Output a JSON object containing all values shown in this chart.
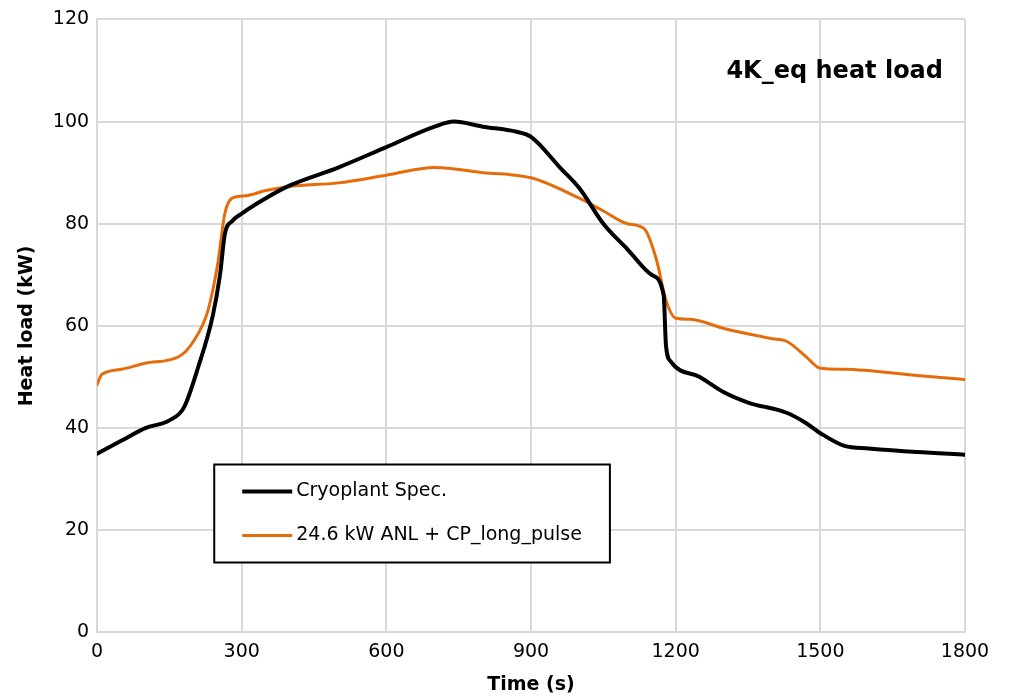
{
  "chart_data": {
    "type": "line",
    "title": "4K_eq heat load",
    "xlabel": "Time (s)",
    "ylabel": "Heat load (kW)",
    "xlim": [
      0,
      1800
    ],
    "xticks": [
      0,
      300,
      600,
      900,
      1200,
      1500,
      1800
    ],
    "ylim": [
      0,
      120
    ],
    "yticks": [
      0,
      20,
      40,
      60,
      80,
      100,
      120
    ],
    "grid": true,
    "legend": "bottom",
    "marker": "none",
    "line_style": "solid",
    "series": [
      {
        "name": "Cryoplant Spec.",
        "color": "#000000",
        "x": [
          0,
          50,
          100,
          150,
          180,
          210,
          240,
          255,
          265,
          280,
          300,
          350,
          400,
          500,
          600,
          700,
          740,
          800,
          870,
          900,
          960,
          1000,
          1050,
          1100,
          1150,
          1175,
          1180,
          1190,
          1250,
          1300,
          1350,
          1430,
          1470,
          1500,
          1550,
          1600,
          1700,
          1800
        ],
        "values": [
          35,
          37.5,
          40,
          41.5,
          44,
          52,
          62,
          70,
          78,
          80.5,
          82,
          85,
          87.5,
          91,
          95,
          99,
          100,
          99,
          98,
          97,
          91,
          87,
          80,
          75,
          70,
          66,
          56,
          53,
          50,
          47,
          45,
          43,
          41,
          39,
          36.5,
          36,
          35.3,
          34.8
        ]
      },
      {
        "name": "24.6 kW ANL + CP_long_pulse",
        "color": "#e46c0a",
        "x": [
          0,
          10,
          50,
          100,
          170,
          200,
          230,
          250,
          265,
          280,
          310,
          350,
          400,
          500,
          600,
          700,
          800,
          900,
          1000,
          1050,
          1100,
          1135,
          1160,
          1180,
          1200,
          1230,
          1300,
          1400,
          1430,
          1470,
          1500,
          1550,
          1700,
          1800
        ],
        "values": [
          48.5,
          50.5,
          51.5,
          52.7,
          54,
          57,
          63,
          72,
          82,
          85,
          85.5,
          86.5,
          87.3,
          88,
          89.5,
          91,
          90,
          89,
          85,
          82.5,
          80,
          79,
          73,
          65,
          61.5,
          61.3,
          59.5,
          57.5,
          57,
          54,
          51.7,
          51.5,
          50.3,
          49.5
        ]
      }
    ]
  }
}
